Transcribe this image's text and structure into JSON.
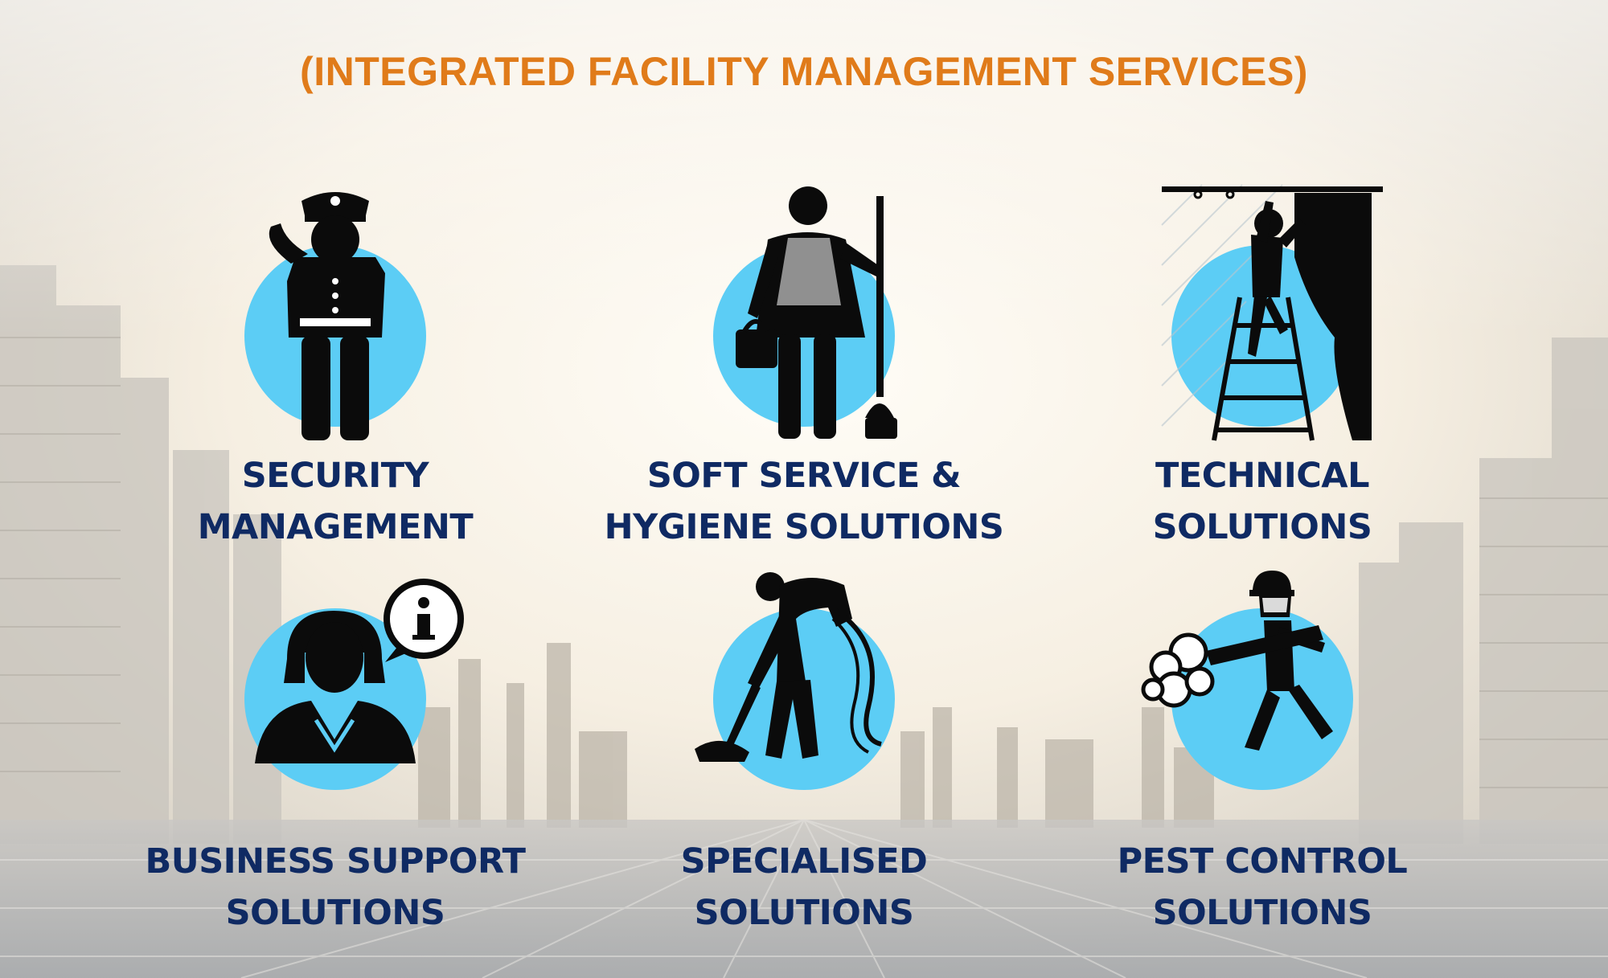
{
  "heading": "(INTEGRATED FACILITY MANAGEMENT SERVICES)",
  "colors": {
    "heading": "#e07b1a",
    "label": "#0f2a63",
    "circle": "#5ccdf5",
    "figure": "#0b0b0b"
  },
  "services": [
    {
      "lines": [
        "SECURITY",
        "MANAGEMENT"
      ],
      "icon": "security-guard-icon"
    },
    {
      "lines": [
        "SOFT SERVICE &",
        "HYGIENE SOLUTIONS"
      ],
      "icon": "cleaner-with-mop-icon"
    },
    {
      "lines": [
        "TECHNICAL SOLUTIONS"
      ],
      "icon": "technician-on-ladder-icon"
    },
    {
      "lines": [
        "BUSINESS SUPPORT",
        "SOLUTIONS"
      ],
      "icon": "receptionist-info-icon"
    },
    {
      "lines": [
        "SPECIALISED",
        "SOLUTIONS"
      ],
      "icon": "vacuum-cleaning-worker-icon"
    },
    {
      "lines": [
        "PEST CONTROL",
        "SOLUTIONS"
      ],
      "icon": "fumigation-worker-icon"
    }
  ]
}
